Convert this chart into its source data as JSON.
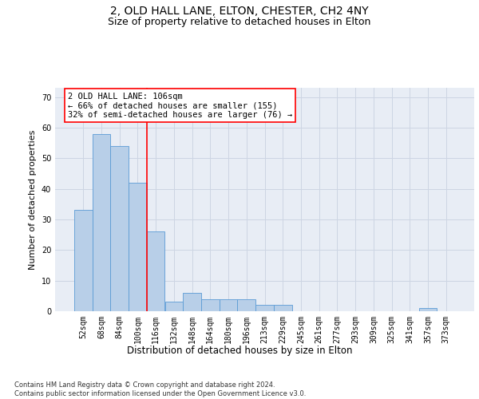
{
  "title_line1": "2, OLD HALL LANE, ELTON, CHESTER, CH2 4NY",
  "title_line2": "Size of property relative to detached houses in Elton",
  "xlabel": "Distribution of detached houses by size in Elton",
  "ylabel": "Number of detached properties",
  "bin_labels": [
    "52sqm",
    "68sqm",
    "84sqm",
    "100sqm",
    "116sqm",
    "132sqm",
    "148sqm",
    "164sqm",
    "180sqm",
    "196sqm",
    "213sqm",
    "229sqm",
    "245sqm",
    "261sqm",
    "277sqm",
    "293sqm",
    "309sqm",
    "325sqm",
    "341sqm",
    "357sqm",
    "373sqm"
  ],
  "bar_values": [
    33,
    58,
    54,
    42,
    26,
    3,
    6,
    4,
    4,
    4,
    2,
    2,
    0,
    0,
    0,
    0,
    0,
    0,
    0,
    1,
    0
  ],
  "bar_color": "#b8cfe8",
  "bar_edgecolor": "#5b9bd5",
  "bar_width": 1.0,
  "property_line_x": 3.5,
  "annotation_text": "2 OLD HALL LANE: 106sqm\n← 66% of detached houses are smaller (155)\n32% of semi-detached houses are larger (76) →",
  "annotation_box_color": "white",
  "annotation_box_edgecolor": "red",
  "property_line_color": "red",
  "ylim": [
    0,
    73
  ],
  "yticks": [
    0,
    10,
    20,
    30,
    40,
    50,
    60,
    70
  ],
  "grid_color": "#cdd5e3",
  "background_color": "#e8edf5",
  "footnote": "Contains HM Land Registry data © Crown copyright and database right 2024.\nContains public sector information licensed under the Open Government Licence v3.0.",
  "title_fontsize": 10,
  "subtitle_fontsize": 9,
  "xlabel_fontsize": 8.5,
  "ylabel_fontsize": 8,
  "tick_fontsize": 7,
  "annot_fontsize": 7.5,
  "footnote_fontsize": 6
}
